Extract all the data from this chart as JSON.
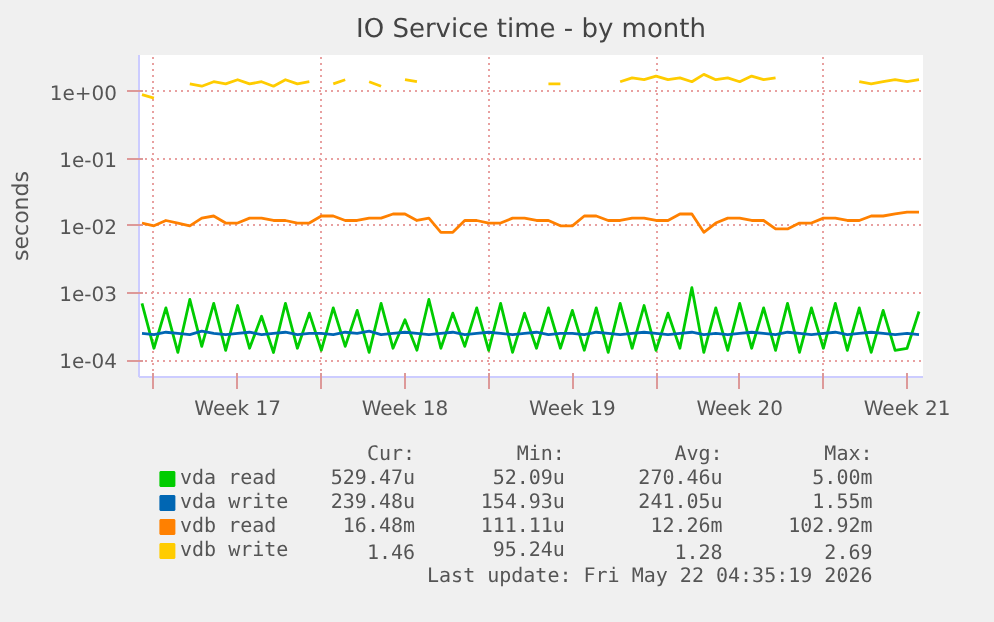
{
  "chart_data": {
    "type": "line",
    "title": "IO Service time - by month",
    "ylabel": "seconds",
    "log": "y",
    "grid": true,
    "legend": "bottom",
    "line_style": "solid",
    "marker": "none",
    "xlim": [
      "2026-04-19T09:00",
      "2026-05-22T04:00"
    ],
    "ylim": [
      5.6e-05,
      3.5
    ],
    "xticks": [
      {
        "value": "2026-04-20T00:00",
        "label": null
      },
      {
        "value": "2026-04-23T12:00",
        "label": "Week 17"
      },
      {
        "value": "2026-04-27T00:00",
        "label": null
      },
      {
        "value": "2026-04-30T12:00",
        "label": "Week 18"
      },
      {
        "value": "2026-05-04T00:00",
        "label": null
      },
      {
        "value": "2026-05-07T12:00",
        "label": "Week 19"
      },
      {
        "value": "2026-05-11T00:00",
        "label": null
      },
      {
        "value": "2026-05-14T12:00",
        "label": "Week 20"
      },
      {
        "value": "2026-05-18T00:00",
        "label": null
      },
      {
        "value": "2026-05-21T12:00",
        "label": "Week 21"
      }
    ],
    "yticks": [
      {
        "value": 0.0001,
        "label": "1e-04"
      },
      {
        "value": 0.001,
        "label": "1e-03"
      },
      {
        "value": 0.01,
        "label": "1e-02"
      },
      {
        "value": 0.1,
        "label": "1e-01"
      },
      {
        "value": 1,
        "label": "1e+00"
      }
    ],
    "x": [
      "2026-04-19T12:00",
      "2026-04-20T00:00",
      "2026-04-20T12:00",
      "2026-04-21T00:00",
      "2026-04-21T12:00",
      "2026-04-22T00:00",
      "2026-04-22T12:00",
      "2026-04-23T00:00",
      "2026-04-23T12:00",
      "2026-04-24T00:00",
      "2026-04-24T12:00",
      "2026-04-25T00:00",
      "2026-04-25T12:00",
      "2026-04-26T00:00",
      "2026-04-26T12:00",
      "2026-04-27T00:00",
      "2026-04-27T12:00",
      "2026-04-28T00:00",
      "2026-04-28T12:00",
      "2026-04-29T00:00",
      "2026-04-29T12:00",
      "2026-04-30T00:00",
      "2026-04-30T12:00",
      "2026-05-01T00:00",
      "2026-05-01T12:00",
      "2026-05-02T00:00",
      "2026-05-02T12:00",
      "2026-05-03T00:00",
      "2026-05-03T12:00",
      "2026-05-04T00:00",
      "2026-05-04T12:00",
      "2026-05-05T00:00",
      "2026-05-05T12:00",
      "2026-05-06T00:00",
      "2026-05-06T12:00",
      "2026-05-07T00:00",
      "2026-05-07T12:00",
      "2026-05-08T00:00",
      "2026-05-08T12:00",
      "2026-05-09T00:00",
      "2026-05-09T12:00",
      "2026-05-10T00:00",
      "2026-05-10T12:00",
      "2026-05-11T00:00",
      "2026-05-11T12:00",
      "2026-05-12T00:00",
      "2026-05-12T12:00",
      "2026-05-13T00:00",
      "2026-05-13T12:00",
      "2026-05-14T00:00",
      "2026-05-14T12:00",
      "2026-05-15T00:00",
      "2026-05-15T12:00",
      "2026-05-16T00:00",
      "2026-05-16T12:00",
      "2026-05-17T00:00",
      "2026-05-17T12:00",
      "2026-05-18T00:00",
      "2026-05-18T12:00",
      "2026-05-19T00:00",
      "2026-05-19T12:00",
      "2026-05-20T00:00",
      "2026-05-20T12:00",
      "2026-05-21T00:00",
      "2026-05-21T12:00",
      "2026-05-22T00:00"
    ],
    "series": [
      {
        "name": "vda read",
        "color": "#00cc00",
        "values": [
          0.0007,
          0.00015,
          0.0006,
          0.00013,
          0.0008,
          0.00016,
          0.0007,
          0.00014,
          0.00065,
          0.00015,
          0.00045,
          0.00013,
          0.0007,
          0.00015,
          0.0005,
          0.00014,
          0.0006,
          0.00016,
          0.00055,
          0.00013,
          0.0007,
          0.00015,
          0.0004,
          0.00014,
          0.0008,
          0.00015,
          0.0005,
          0.00016,
          0.0006,
          0.00014,
          0.0007,
          0.00013,
          0.0005,
          0.00015,
          0.0006,
          0.00015,
          0.00055,
          0.00014,
          0.0006,
          0.00013,
          0.0007,
          0.00015,
          0.00065,
          0.00014,
          0.0005,
          0.00015,
          0.0012,
          0.00013,
          0.0006,
          0.00014,
          0.0007,
          0.00015,
          0.0006,
          0.00014,
          0.0007,
          0.00013,
          0.0006,
          0.00015,
          0.0007,
          0.00014,
          0.0006,
          0.00013,
          0.00055,
          0.00014,
          0.00015,
          0.00053
        ]
      },
      {
        "name": "vda write",
        "color": "#0066b3",
        "values": [
          0.00025,
          0.00024,
          0.00026,
          0.00025,
          0.00024,
          0.00027,
          0.00025,
          0.00024,
          0.00025,
          0.00026,
          0.00024,
          0.00025,
          0.00026,
          0.00024,
          0.00025,
          0.00025,
          0.00024,
          0.00026,
          0.00025,
          0.00027,
          0.00024,
          0.00025,
          0.00026,
          0.00025,
          0.00024,
          0.00025,
          0.00026,
          0.00024,
          0.00025,
          0.00026,
          0.00025,
          0.00024,
          0.00025,
          0.00026,
          0.00024,
          0.00025,
          0.00025,
          0.00024,
          0.00026,
          0.00025,
          0.00024,
          0.00025,
          0.00026,
          0.00025,
          0.00024,
          0.00025,
          0.00026,
          0.00024,
          0.00025,
          0.00024,
          0.00025,
          0.00026,
          0.00025,
          0.00024,
          0.00026,
          0.00025,
          0.00024,
          0.00025,
          0.00026,
          0.00024,
          0.00025,
          0.00026,
          0.00025,
          0.00024,
          0.00025,
          0.00024
        ]
      },
      {
        "name": "vdb read",
        "color": "#ff8000",
        "values": [
          0.011,
          0.01,
          0.012,
          0.011,
          0.01,
          0.013,
          0.014,
          0.011,
          0.011,
          0.013,
          0.013,
          0.012,
          0.012,
          0.011,
          0.011,
          0.014,
          0.014,
          0.012,
          0.012,
          0.013,
          0.013,
          0.015,
          0.015,
          0.012,
          0.013,
          0.008,
          0.008,
          0.012,
          0.012,
          0.011,
          0.011,
          0.013,
          0.013,
          0.012,
          0.012,
          0.01,
          0.01,
          0.014,
          0.014,
          0.012,
          0.012,
          0.013,
          0.013,
          0.012,
          0.012,
          0.015,
          0.015,
          0.008,
          0.011,
          0.013,
          0.013,
          0.012,
          0.012,
          0.009,
          0.009,
          0.011,
          0.011,
          0.013,
          0.013,
          0.012,
          0.012,
          0.014,
          0.014,
          0.015,
          0.016,
          0.016
        ]
      },
      {
        "name": "vdb write",
        "color": "#ffcc00",
        "values": [
          0.9,
          0.8,
          null,
          null,
          1.3,
          1.2,
          1.4,
          1.3,
          1.5,
          1.3,
          1.4,
          1.2,
          1.5,
          1.3,
          1.4,
          null,
          1.3,
          1.5,
          null,
          1.4,
          1.2,
          null,
          1.5,
          1.4,
          null,
          null,
          null,
          null,
          null,
          null,
          null,
          null,
          null,
          null,
          1.3,
          1.3,
          null,
          null,
          null,
          null,
          1.4,
          1.6,
          1.5,
          1.7,
          1.5,
          1.6,
          1.4,
          1.8,
          1.5,
          1.6,
          1.4,
          1.7,
          1.5,
          1.6,
          null,
          null,
          null,
          null,
          null,
          null,
          1.4,
          1.3,
          1.4,
          1.5,
          1.4,
          1.5
        ]
      }
    ],
    "annotations": [
      "Cur:",
      "Min:",
      "Avg:",
      "Max:",
      "529.47u",
      "52.09u",
      "270.46u",
      "5.00m",
      "239.48u",
      "154.93u",
      "241.05u",
      "1.55m",
      "16.48m",
      "111.11u",
      "12.26m",
      "102.92m",
      "1.46",
      "95.24u",
      "1.28",
      "2.69",
      "Last update: Fri May 22 04:35:19 2026"
    ]
  }
}
